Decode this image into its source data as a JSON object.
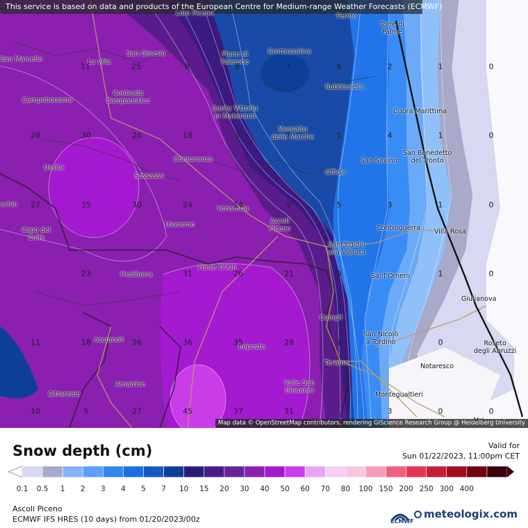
{
  "banner": "This service is based on data and products of the European Centre for Medium-range Weather Forecasts (ECMWF)",
  "attribution": "Map data © OpenStreetMap contributors, rendering GIScience Research Group @ Heidelberg University",
  "title": "Snow depth (cm)",
  "valid_label": "Valid for",
  "valid_date": "Sun 01/22/2023, 11:00pm CET",
  "location": "Ascoli Piceno",
  "model": "ECMWF IFS HRES (10 days) from 01/20/2023/00z",
  "ecmwf_text": "ECMWF",
  "brand": "meteologix.com",
  "legend": {
    "labels": [
      "0.1",
      "0.5",
      "1",
      "2",
      "3",
      "4",
      "5",
      "7",
      "10",
      "15",
      "20",
      "30",
      "40",
      "50",
      "60",
      "70",
      "80",
      "100",
      "150",
      "200",
      "250",
      "300",
      "400"
    ],
    "colors": [
      "#d8d8f2",
      "#a9a9c9",
      "#84b4f5",
      "#5aa0f8",
      "#2f87f3",
      "#1d6ee3",
      "#1458c4",
      "#0e3f96",
      "#2c1a78",
      "#4a1a8a",
      "#6a2296",
      "#8a1fb0",
      "#a41ad0",
      "#c93de8",
      "#e6a5f2",
      "#f2d0f7",
      "#f9c6e0",
      "#f79cb8",
      "#f2607f",
      "#e33456",
      "#c71e37",
      "#a00e22",
      "#6e0414",
      "#3d000a"
    ]
  },
  "places": [
    {
      "name": "Loro Piceno"
    },
    {
      "name": "Fermo"
    },
    {
      "name": "Torre di\nPalme"
    },
    {
      "name": "San Marcello"
    },
    {
      "name": "San Ginesio"
    },
    {
      "name": "La villa"
    },
    {
      "name": "Piane di\nFalerone"
    },
    {
      "name": "Grottazzolina"
    },
    {
      "name": "Rubbianello"
    },
    {
      "name": "Contrada\nCampanotico"
    },
    {
      "name": "Campobonomo"
    },
    {
      "name": "Santa Vittoria\nin Matenano"
    },
    {
      "name": "Cupra Marittima"
    },
    {
      "name": "Montalto\ndelle Marche"
    },
    {
      "name": "San Benedetto\ndel Tronto"
    },
    {
      "name": "Ussita"
    },
    {
      "name": "Comunanza"
    },
    {
      "name": "Sossasso"
    },
    {
      "name": "San Savino"
    },
    {
      "name": "Offida"
    },
    {
      "name": "cchio"
    },
    {
      "name": "Venarotta"
    },
    {
      "name": "Ascoli\nPiceno"
    },
    {
      "name": "Capo del\nColle"
    },
    {
      "name": "Usscerno"
    },
    {
      "name": "Controguerra"
    },
    {
      "name": "Villa Rosa"
    },
    {
      "name": "Sant'Egidio\nalla Vibrata"
    },
    {
      "name": "Piedilama"
    },
    {
      "name": "Ponte D'Arli"
    },
    {
      "name": "Sant'Omero"
    },
    {
      "name": "Giulianova"
    },
    {
      "name": "Campli"
    },
    {
      "name": "Accumoli"
    },
    {
      "name": "San Nicolò\na Tordino"
    },
    {
      "name": "Roseto\ndegli Abruzzi"
    },
    {
      "name": "Imposte"
    },
    {
      "name": "Teramo"
    },
    {
      "name": "Notaresco"
    },
    {
      "name": "Amatrice"
    },
    {
      "name": "Valle San\nGiovanni"
    },
    {
      "name": "Cittareale"
    },
    {
      "name": "Montegualtieri"
    },
    {
      "name": "Atri"
    }
  ],
  "values": [
    "11",
    "9",
    "7",
    "6",
    "2",
    "1",
    "0",
    "25",
    "8",
    "7",
    "6",
    "3",
    "1",
    "0",
    "28",
    "30",
    "26",
    "18",
    "3",
    "5",
    "4",
    "0",
    "0",
    "27",
    "35",
    "30",
    "24",
    "14",
    "9",
    "5",
    "3",
    "1",
    "0",
    "23",
    "31",
    "26",
    "21",
    "9",
    "1",
    "0",
    "11",
    "18",
    "26",
    "36",
    "35",
    "28",
    "1",
    "0",
    "10",
    "5",
    "27",
    "45",
    "37",
    "31",
    "3",
    "0",
    "0"
  ]
}
